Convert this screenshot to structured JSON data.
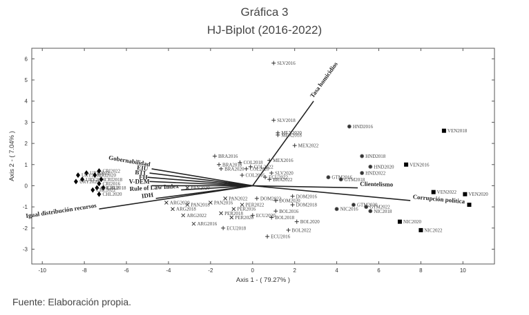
{
  "header": {
    "title": "Gráfica 3",
    "subtitle": "HJ-Biplot (2016-2022)"
  },
  "footer": {
    "source": "Fuente: Elaboración propia."
  },
  "chart_data": {
    "type": "scatter",
    "title": "Gráfica 3",
    "subtitle": "HJ-Biplot (2016-2022)",
    "xlabel": "Axis 1 - ( 79.27% )",
    "ylabel": "Axis 2 - ( 7.04% )",
    "xlim": [
      -10.5,
      11.5
    ],
    "ylim": [
      -3.7,
      6.5
    ],
    "xticks": [
      -10,
      -8,
      -6,
      -4,
      -2,
      0,
      2,
      4,
      6,
      8,
      10
    ],
    "yticks": [
      -3,
      -2,
      -1,
      0,
      1,
      2,
      3,
      4,
      5,
      6
    ],
    "grid": false,
    "points": [
      {
        "label": "SLV2016",
        "x": 1.0,
        "y": 5.8,
        "marker": "plus"
      },
      {
        "label": "SLV2018",
        "x": 1.0,
        "y": 3.1,
        "marker": "plus"
      },
      {
        "label": "MEX2018",
        "x": 1.2,
        "y": 2.4,
        "marker": "plus"
      },
      {
        "label": "MEX2020",
        "x": 1.2,
        "y": 2.5,
        "marker": "plus"
      },
      {
        "label": "MEX2022",
        "x": 2.0,
        "y": 1.9,
        "marker": "plus"
      },
      {
        "label": "MEX2016",
        "x": 0.8,
        "y": 1.2,
        "marker": "plus"
      },
      {
        "label": "BRA2016",
        "x": -1.8,
        "y": 1.4,
        "marker": "plus"
      },
      {
        "label": "BRA2018",
        "x": -1.6,
        "y": 1.0,
        "marker": "plus"
      },
      {
        "label": "BRA2020",
        "x": -1.5,
        "y": 0.8,
        "marker": "plus"
      },
      {
        "label": "BRA2022",
        "x": 0.8,
        "y": 0.3,
        "marker": "plus"
      },
      {
        "label": "COL2018",
        "x": -0.6,
        "y": 1.1,
        "marker": "plus"
      },
      {
        "label": "COL2020",
        "x": -0.3,
        "y": 0.8,
        "marker": "plus"
      },
      {
        "label": "COL2022",
        "x": -0.1,
        "y": 0.9,
        "marker": "plus"
      },
      {
        "label": "COL2016",
        "x": -0.5,
        "y": 0.5,
        "marker": "plus"
      },
      {
        "label": "SLV2020",
        "x": 0.9,
        "y": 0.6,
        "marker": "plus"
      },
      {
        "label": "ECU2022",
        "x": 0.6,
        "y": 0.4,
        "marker": "plus"
      },
      {
        "label": "PAN2020",
        "x": -3.1,
        "y": -0.1,
        "marker": "x"
      },
      {
        "label": "PAN2016",
        "x": -2.0,
        "y": -0.8,
        "marker": "x"
      },
      {
        "label": "PAN2018",
        "x": -3.1,
        "y": -0.9,
        "marker": "x"
      },
      {
        "label": "PAN2022",
        "x": -1.3,
        "y": -0.6,
        "marker": "x"
      },
      {
        "label": "PER2016",
        "x": -0.9,
        "y": -1.1,
        "marker": "x"
      },
      {
        "label": "PER2018",
        "x": -1.5,
        "y": -1.3,
        "marker": "x"
      },
      {
        "label": "PER2020",
        "x": -1.0,
        "y": -1.5,
        "marker": "x"
      },
      {
        "label": "PER2022",
        "x": -0.5,
        "y": -0.9,
        "marker": "x"
      },
      {
        "label": "ARG2020",
        "x": -4.1,
        "y": -0.8,
        "marker": "x"
      },
      {
        "label": "ARG2018",
        "x": -3.8,
        "y": -1.1,
        "marker": "x"
      },
      {
        "label": "ARG2022",
        "x": -3.3,
        "y": -1.4,
        "marker": "x"
      },
      {
        "label": "ARG2016",
        "x": -2.8,
        "y": -1.8,
        "marker": "x"
      },
      {
        "label": "DOM2022",
        "x": 0.2,
        "y": -0.6,
        "marker": "plus"
      },
      {
        "label": "DOM2016",
        "x": 1.9,
        "y": -0.5,
        "marker": "plus"
      },
      {
        "label": "DOM2020",
        "x": 1.1,
        "y": -0.7,
        "marker": "plus"
      },
      {
        "label": "DOM2018",
        "x": 1.9,
        "y": -0.9,
        "marker": "plus"
      },
      {
        "label": "ECU2020",
        "x": 0.0,
        "y": -1.4,
        "marker": "plus"
      },
      {
        "label": "ECU2018",
        "x": -1.4,
        "y": -2.0,
        "marker": "plus"
      },
      {
        "label": "ECU2016",
        "x": 0.7,
        "y": -2.4,
        "marker": "plus"
      },
      {
        "label": "BOL2016",
        "x": 1.1,
        "y": -1.2,
        "marker": "plus"
      },
      {
        "label": "BOL2018",
        "x": 0.9,
        "y": -1.5,
        "marker": "plus"
      },
      {
        "label": "BOL2020",
        "x": 2.1,
        "y": -1.7,
        "marker": "plus"
      },
      {
        "label": "BOL2022",
        "x": 1.7,
        "y": -2.1,
        "marker": "plus"
      },
      {
        "label": "HND2016",
        "x": 4.6,
        "y": 2.8,
        "marker": "star"
      },
      {
        "label": "HND2018",
        "x": 5.2,
        "y": 1.4,
        "marker": "star"
      },
      {
        "label": "HND2020",
        "x": 5.6,
        "y": 0.9,
        "marker": "star"
      },
      {
        "label": "HND2022",
        "x": 5.2,
        "y": 0.6,
        "marker": "star"
      },
      {
        "label": "GTM2016",
        "x": 3.6,
        "y": 0.4,
        "marker": "star"
      },
      {
        "label": "GTM2018",
        "x": 4.2,
        "y": 0.3,
        "marker": "star"
      },
      {
        "label": "GTM2020",
        "x": 4.8,
        "y": -0.9,
        "marker": "star"
      },
      {
        "label": "GTM2022",
        "x": 5.4,
        "y": -1.0,
        "marker": "star"
      },
      {
        "label": "NIC2016",
        "x": 4.0,
        "y": -1.1,
        "marker": "star"
      },
      {
        "label": "NIC2018",
        "x": 5.6,
        "y": -1.2,
        "marker": "star"
      },
      {
        "label": "NIC2020",
        "x": 7.0,
        "y": -1.7,
        "marker": "square"
      },
      {
        "label": "NIC2022",
        "x": 8.0,
        "y": -2.1,
        "marker": "square"
      },
      {
        "label": "VEN2018",
        "x": 9.1,
        "y": 2.6,
        "marker": "square"
      },
      {
        "label": "VEN2016",
        "x": 7.3,
        "y": 1.0,
        "marker": "square"
      },
      {
        "label": "VEN2020",
        "x": 10.1,
        "y": -0.4,
        "marker": "square"
      },
      {
        "label": "VEN2022",
        "x": 8.6,
        "y": -0.3,
        "marker": "square"
      },
      {
        "label": "",
        "x": 10.3,
        "y": -0.9,
        "marker": "square"
      },
      {
        "label": "URY2022",
        "x": -7.9,
        "y": 0.6,
        "marker": "diamond"
      },
      {
        "label": "URY2018",
        "x": -8.3,
        "y": 0.5,
        "marker": "diamond"
      },
      {
        "label": "URY2016",
        "x": -8.1,
        "y": 0.3,
        "marker": "diamond"
      },
      {
        "label": "URY2020",
        "x": -8.4,
        "y": 0.2,
        "marker": "diamond"
      },
      {
        "label": "CRI2022",
        "x": -7.3,
        "y": 0.7,
        "marker": "diamond"
      },
      {
        "label": "CRI2020",
        "x": -7.5,
        "y": 0.5,
        "marker": "diamond"
      },
      {
        "label": "CRI2018",
        "x": -7.2,
        "y": 0.3,
        "marker": "diamond"
      },
      {
        "label": "CRI2016",
        "x": -7.3,
        "y": 0.1,
        "marker": "diamond"
      },
      {
        "label": "CHL2016",
        "x": -7.4,
        "y": -0.1,
        "marker": "diamond"
      },
      {
        "label": "CHL2018",
        "x": -7.1,
        "y": -0.1,
        "marker": "diamond"
      },
      {
        "label": "CHL2022",
        "x": -7.6,
        "y": -0.2,
        "marker": "diamond"
      },
      {
        "label": "CHL2020",
        "x": -7.3,
        "y": -0.4,
        "marker": "diamond"
      }
    ],
    "vectors": [
      {
        "label": "Tasa homicidios",
        "x": 2.9,
        "y": 4.0
      },
      {
        "label": "Gobernabilidad",
        "x": -4.8,
        "y": 0.8
      },
      {
        "label": "EIU",
        "x": -4.9,
        "y": 0.6
      },
      {
        "label": "BTI",
        "x": -5.0,
        "y": 0.4
      },
      {
        "label": "FH",
        "x": -4.9,
        "y": 0.2
      },
      {
        "label": "V-DEM",
        "x": -4.8,
        "y": 0.0
      },
      {
        "label": "Rule of Law Index",
        "x": -3.4,
        "y": -0.2
      },
      {
        "label": "IDH",
        "x": -4.6,
        "y": -0.6
      },
      {
        "label": "Igual distribución recursos",
        "x": -7.3,
        "y": -1.1
      },
      {
        "label": "Clientelismo",
        "x": 5.0,
        "y": -0.1
      },
      {
        "label": "Corrupción política",
        "x": 7.5,
        "y": -0.7
      }
    ]
  }
}
